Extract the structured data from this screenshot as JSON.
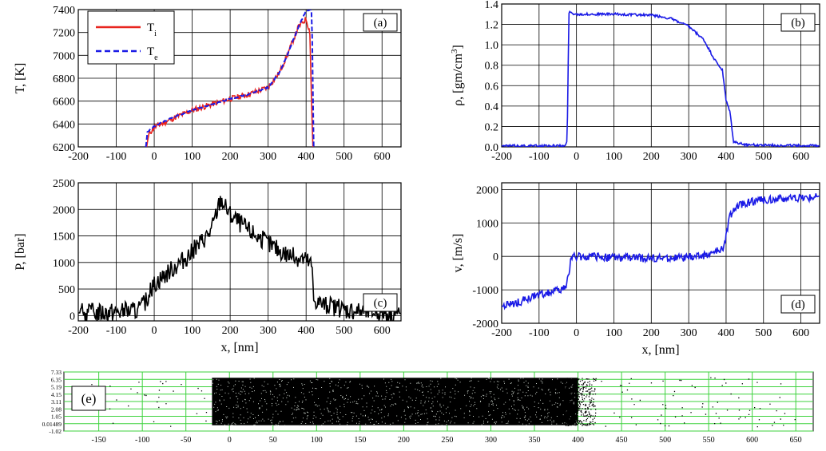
{
  "colors": {
    "red": "#e8251f",
    "blue": "#1a1ae6",
    "black": "#000000",
    "green": "#3cd23c",
    "grid": "#000000"
  },
  "chart_data": [
    {
      "id": "a",
      "type": "line",
      "panel_label": "(a)",
      "ylabel": "T, [K]",
      "xlabel": "",
      "xlim": [
        -200,
        650
      ],
      "ylim": [
        6200,
        7400
      ],
      "xticks": [
        -200,
        -100,
        0,
        100,
        200,
        300,
        400,
        500,
        600
      ],
      "yticks": [
        6200,
        6400,
        6600,
        6800,
        7000,
        7200,
        7400
      ],
      "grid": true,
      "legend": {
        "placement": "top-left",
        "entries": [
          {
            "label": "T",
            "sub": "i",
            "color": "#e8251f",
            "style": "solid"
          },
          {
            "label": "T",
            "sub": "e",
            "color": "#1a1ae6",
            "style": "dashed"
          }
        ]
      },
      "series": [
        {
          "name": "T_i",
          "color": "#e8251f",
          "style": "solid",
          "noise": 25,
          "points": [
            [
              -20,
              6200
            ],
            [
              -15,
              6300
            ],
            [
              -10,
              6330
            ],
            [
              0,
              6370
            ],
            [
              50,
              6450
            ],
            [
              100,
              6520
            ],
            [
              150,
              6570
            ],
            [
              200,
              6620
            ],
            [
              250,
              6660
            ],
            [
              300,
              6720
            ],
            [
              330,
              6850
            ],
            [
              350,
              7000
            ],
            [
              380,
              7250
            ],
            [
              400,
              7320
            ],
            [
              410,
              7200
            ],
            [
              415,
              6500
            ],
            [
              418,
              6200
            ]
          ]
        },
        {
          "name": "T_e",
          "color": "#1a1ae6",
          "style": "dashed",
          "noise": 5,
          "points": [
            [
              -22,
              6200
            ],
            [
              -18,
              6330
            ],
            [
              0,
              6380
            ],
            [
              50,
              6460
            ],
            [
              100,
              6520
            ],
            [
              150,
              6570
            ],
            [
              200,
              6620
            ],
            [
              250,
              6660
            ],
            [
              300,
              6720
            ],
            [
              330,
              6850
            ],
            [
              350,
              7000
            ],
            [
              380,
              7250
            ],
            [
              400,
              7390
            ],
            [
              415,
              7400
            ],
            [
              420,
              6200
            ]
          ]
        }
      ]
    },
    {
      "id": "b",
      "type": "line",
      "panel_label": "(b)",
      "ylabel": "ρ, [gm/cm",
      "ylabel_sup": "3",
      "ylabel_end": "]",
      "xlabel": "",
      "xlim": [
        -200,
        650
      ],
      "ylim": [
        0.0,
        1.4
      ],
      "xticks": [
        -200,
        -100,
        0,
        100,
        200,
        300,
        400,
        500,
        600
      ],
      "yticks": [
        0.0,
        0.2,
        0.4,
        0.6,
        0.8,
        1.0,
        1.2,
        1.4
      ],
      "grid": true,
      "series": [
        {
          "name": "rho",
          "color": "#1a1ae6",
          "style": "solid",
          "noise": 0.012,
          "points": [
            [
              -200,
              0.01
            ],
            [
              -30,
              0.01
            ],
            [
              -25,
              0.05
            ],
            [
              -20,
              1.32
            ],
            [
              0,
              1.3
            ],
            [
              100,
              1.3
            ],
            [
              200,
              1.29
            ],
            [
              250,
              1.26
            ],
            [
              300,
              1.18
            ],
            [
              340,
              1.05
            ],
            [
              370,
              0.85
            ],
            [
              390,
              0.75
            ],
            [
              400,
              0.45
            ],
            [
              410,
              0.35
            ],
            [
              420,
              0.05
            ],
            [
              450,
              0.02
            ],
            [
              650,
              0.01
            ]
          ]
        }
      ]
    },
    {
      "id": "c",
      "type": "line",
      "panel_label": "(c)",
      "ylabel": "P, [bar]",
      "xlabel": "x, [nm]",
      "xlim": [
        -200,
        650
      ],
      "ylim": [
        -100,
        2500
      ],
      "xticks": [
        -200,
        -100,
        0,
        100,
        200,
        300,
        400,
        500,
        600
      ],
      "yticks": [
        0,
        500,
        1000,
        1500,
        2000,
        2500
      ],
      "grid": true,
      "series": [
        {
          "name": "P",
          "color": "#000000",
          "style": "solid",
          "noise": 180,
          "points": [
            [
              -200,
              50
            ],
            [
              -100,
              70
            ],
            [
              -40,
              100
            ],
            [
              -20,
              300
            ],
            [
              0,
              600
            ],
            [
              50,
              900
            ],
            [
              100,
              1200
            ],
            [
              150,
              1600
            ],
            [
              175,
              2200
            ],
            [
              200,
              1900
            ],
            [
              250,
              1600
            ],
            [
              300,
              1350
            ],
            [
              350,
              1150
            ],
            [
              400,
              1050
            ],
            [
              415,
              950
            ],
            [
              420,
              300
            ],
            [
              450,
              200
            ],
            [
              500,
              120
            ],
            [
              550,
              80
            ],
            [
              600,
              70
            ],
            [
              650,
              40
            ]
          ]
        }
      ]
    },
    {
      "id": "d",
      "type": "line",
      "panel_label": "(d)",
      "ylabel": "v, [m/s]",
      "xlabel": "x, [nm]",
      "xlim": [
        -200,
        650
      ],
      "ylim": [
        -2000,
        2200
      ],
      "xticks": [
        -200,
        -100,
        0,
        100,
        200,
        300,
        400,
        500,
        600
      ],
      "yticks": [
        -2000,
        -1000,
        0,
        1000,
        2000
      ],
      "grid": true,
      "series": [
        {
          "name": "v",
          "color": "#1a1ae6",
          "style": "solid",
          "noise": 120,
          "points": [
            [
              -200,
              -1500
            ],
            [
              -150,
              -1350
            ],
            [
              -100,
              -1150
            ],
            [
              -30,
              -950
            ],
            [
              -20,
              -600
            ],
            [
              -15,
              0
            ],
            [
              0,
              0
            ],
            [
              100,
              -30
            ],
            [
              200,
              -60
            ],
            [
              300,
              -40
            ],
            [
              350,
              50
            ],
            [
              390,
              200
            ],
            [
              400,
              600
            ],
            [
              410,
              1200
            ],
            [
              420,
              1400
            ],
            [
              450,
              1600
            ],
            [
              500,
              1700
            ],
            [
              600,
              1750
            ],
            [
              650,
              1800
            ]
          ]
        }
      ]
    },
    {
      "id": "e",
      "type": "scatter",
      "panel_label": "(e)",
      "xlim": [
        -190,
        670
      ],
      "ylim": [
        -1.02,
        7.33
      ],
      "xticks": [
        -150,
        -100,
        -50,
        0,
        50,
        100,
        150,
        200,
        250,
        300,
        350,
        400,
        450,
        500,
        550,
        600,
        650
      ],
      "yticks": [
        "7.33",
        "6.35",
        "5.19",
        "4.15",
        "3.11",
        "2.08",
        "1.05",
        "0.01489",
        "-1.02"
      ],
      "grid": true,
      "dense_region": {
        "x": [
          -20,
          400
        ],
        "y": [
          0.0,
          6.35
        ]
      },
      "sparse_region": {
        "x": [
          400,
          420
        ],
        "y": [
          0.0,
          6.35
        ]
      }
    }
  ]
}
